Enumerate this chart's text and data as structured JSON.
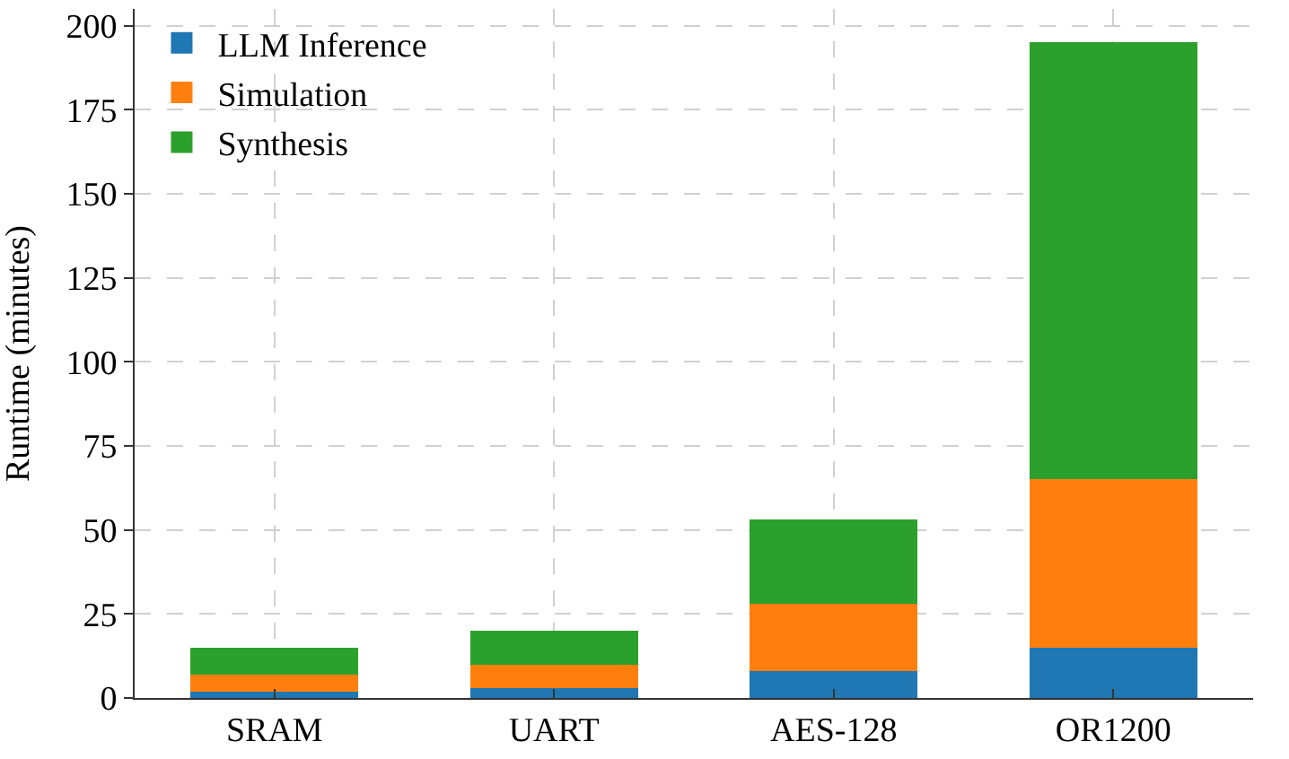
{
  "chart_data": {
    "type": "bar",
    "stacked": true,
    "ylabel": "Runtime (minutes)",
    "categories": [
      "SRAM",
      "UART",
      "AES-128",
      "OR1200"
    ],
    "series": [
      {
        "name": "LLM Inference",
        "color": "#1f77b4",
        "values": [
          2,
          3,
          8,
          15
        ]
      },
      {
        "name": "Simulation",
        "color": "#ff7f0e",
        "values": [
          5,
          7,
          20,
          50
        ]
      },
      {
        "name": "Synthesis",
        "color": "#2ca02c",
        "values": [
          8,
          10,
          25,
          130
        ]
      }
    ],
    "ylim": [
      0,
      205
    ],
    "yticks": [
      0,
      25,
      50,
      75,
      100,
      125,
      150,
      175,
      200
    ],
    "grid": true,
    "legend": "top left"
  }
}
